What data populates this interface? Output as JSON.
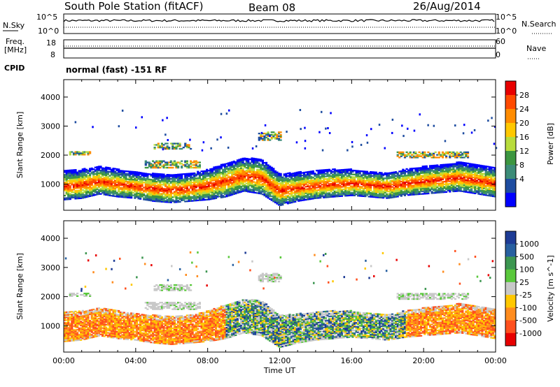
{
  "header": {
    "station": "South Pole Station (fitACF)",
    "beam": "Beam 08",
    "date": "26/Aug/2014"
  },
  "noise_panel": {
    "left_label": "N.Sky",
    "right_label": "N.Search",
    "ticks": [
      "10^5",
      "10^0"
    ]
  },
  "freq_panel": {
    "left_label_1": "Freq.",
    "left_label_2": "[MHz]",
    "left_ticks": [
      "18",
      "8"
    ],
    "right_label": "Nave",
    "right_ticks": [
      "60",
      "0"
    ]
  },
  "cpid": {
    "label": "CPID",
    "mode": "normal (fast) -151 RF"
  },
  "chart_data": [
    {
      "type": "heatmap",
      "title": "",
      "xlabel": "Time UT",
      "ylabel": "Slant Range [km]",
      "x_ticks": [
        "00:00",
        "04:00",
        "08:00",
        "12:00",
        "16:00",
        "20:00",
        "00:00"
      ],
      "y_ticks": [
        1000,
        2000,
        3000,
        4000
      ],
      "ylim": [
        100,
        4600
      ],
      "xlim_hours": [
        0,
        24
      ],
      "colorbar": {
        "label": "Power [dB]",
        "ticks": [
          "28",
          "24",
          "20",
          "16",
          "12",
          "8",
          "4"
        ],
        "colors": [
          "#e80000",
          "#ff4a00",
          "#ff8c00",
          "#ffc800",
          "#b8dc3c",
          "#3c9640",
          "#3c8c78",
          "#1e4ca0",
          "#0000ff"
        ]
      },
      "main_band": [
        {
          "t": 0.0,
          "lo": 600,
          "hi": 1200
        },
        {
          "t": 1.0,
          "lo": 650,
          "hi": 1250
        },
        {
          "t": 2.0,
          "lo": 800,
          "hi": 1350
        },
        {
          "t": 3.0,
          "lo": 700,
          "hi": 1250
        },
        {
          "t": 4.0,
          "lo": 650,
          "hi": 1150
        },
        {
          "t": 5.0,
          "lo": 550,
          "hi": 1100
        },
        {
          "t": 6.0,
          "lo": 500,
          "hi": 1050
        },
        {
          "t": 7.0,
          "lo": 550,
          "hi": 1100
        },
        {
          "t": 8.0,
          "lo": 600,
          "hi": 1250
        },
        {
          "t": 9.0,
          "lo": 700,
          "hi": 1450
        },
        {
          "t": 10.0,
          "lo": 900,
          "hi": 1650
        },
        {
          "t": 11.0,
          "lo": 800,
          "hi": 1600
        },
        {
          "t": 12.0,
          "lo": 400,
          "hi": 1100
        },
        {
          "t": 13.0,
          "lo": 550,
          "hi": 1150
        },
        {
          "t": 14.0,
          "lo": 650,
          "hi": 1200
        },
        {
          "t": 15.0,
          "lo": 700,
          "hi": 1250
        },
        {
          "t": 16.0,
          "lo": 750,
          "hi": 1250
        },
        {
          "t": 17.0,
          "lo": 700,
          "hi": 1200
        },
        {
          "t": 18.0,
          "lo": 650,
          "hi": 1150
        },
        {
          "t": 19.0,
          "lo": 750,
          "hi": 1250
        },
        {
          "t": 20.0,
          "lo": 800,
          "hi": 1350
        },
        {
          "t": 21.0,
          "lo": 850,
          "hi": 1400
        },
        {
          "t": 22.0,
          "lo": 900,
          "hi": 1500
        },
        {
          "t": 23.0,
          "lo": 800,
          "hi": 1400
        },
        {
          "t": 24.0,
          "lo": 700,
          "hi": 1300
        }
      ],
      "secondary_echoes": [
        {
          "t0": 5.0,
          "t1": 7.0,
          "lo": 2200,
          "hi": 2400
        },
        {
          "t0": 4.5,
          "t1": 7.5,
          "lo": 1550,
          "hi": 1800
        },
        {
          "t0": 0.3,
          "t1": 1.5,
          "lo": 2000,
          "hi": 2100
        },
        {
          "t0": 18.5,
          "t1": 22.5,
          "lo": 1900,
          "hi": 2100
        },
        {
          "t0": 10.8,
          "t1": 12.0,
          "lo": 2500,
          "hi": 2800
        }
      ]
    },
    {
      "type": "heatmap",
      "title": "",
      "xlabel": "Time UT",
      "ylabel": "Slant Range [km]",
      "x_ticks": [
        "00:00",
        "04:00",
        "08:00",
        "12:00",
        "16:00",
        "20:00",
        "00:00"
      ],
      "y_ticks": [
        1000,
        2000,
        3000,
        4000
      ],
      "ylim": [
        100,
        4600
      ],
      "xlim_hours": [
        0,
        24
      ],
      "colorbar": {
        "label": "Velocity [m s^-1]",
        "ticks": [
          "1000",
          "500",
          "100",
          "25",
          "-25",
          "-100",
          "-500",
          "-1000"
        ],
        "colors": [
          "#1e3c96",
          "#2860a0",
          "#3c9650",
          "#5ac83c",
          "#c8c8c8",
          "#ffc800",
          "#ff8c1e",
          "#ff501e",
          "#e80000"
        ]
      }
    }
  ]
}
